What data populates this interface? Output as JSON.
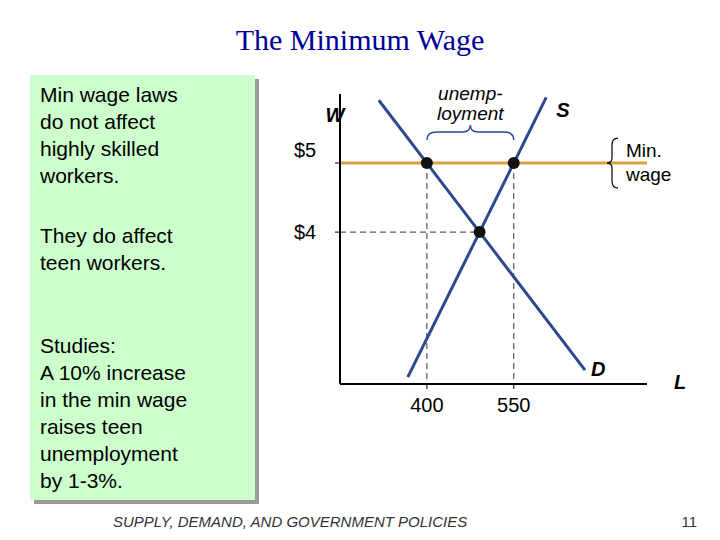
{
  "header": {
    "title": "The Minimum Wage"
  },
  "sidebar": {
    "paragraphs": [
      [
        "Min wage laws",
        "do not affect",
        "highly skilled",
        "workers."
      ],
      [
        "They do affect",
        "teen workers."
      ],
      [
        "Studies:",
        "A 10% increase",
        "in the min wage",
        "raises teen",
        "unemployment",
        "by 1-3%."
      ]
    ]
  },
  "footer": {
    "text": "SUPPLY, DEMAND, AND GOVERNMENT POLICIES",
    "page": "11"
  },
  "chart_data": {
    "type": "line",
    "x_label": "L",
    "y_label": "W",
    "xlim": [
      250,
      780
    ],
    "ylim": [
      1.8,
      6
    ],
    "xticks": [
      400,
      550
    ],
    "yticks": [
      {
        "value": 4,
        "label": "$4"
      },
      {
        "value": 5,
        "label": "$5"
      }
    ],
    "series": [
      {
        "name": "S",
        "color": "#2b4a8e",
        "x": [
          367,
          491,
          550,
          606
        ],
        "values": [
          1.9,
          4,
          5,
          5.95
        ]
      },
      {
        "name": "D",
        "color": "#2b4a8e",
        "x": [
          317,
          400,
          491,
          673
        ],
        "values": [
          5.91,
          5,
          4,
          2
        ]
      }
    ],
    "points": [
      {
        "x": 400,
        "y": 5
      },
      {
        "x": 550,
        "y": 5
      },
      {
        "x": 491,
        "y": 4
      }
    ],
    "min_wage": {
      "value": 5,
      "color": "#d9a040",
      "lines": [
        "Min.",
        "wage"
      ]
    },
    "unemployment": {
      "from": 400,
      "to": 550,
      "lines": [
        "unemp-",
        "loyment"
      ]
    }
  }
}
